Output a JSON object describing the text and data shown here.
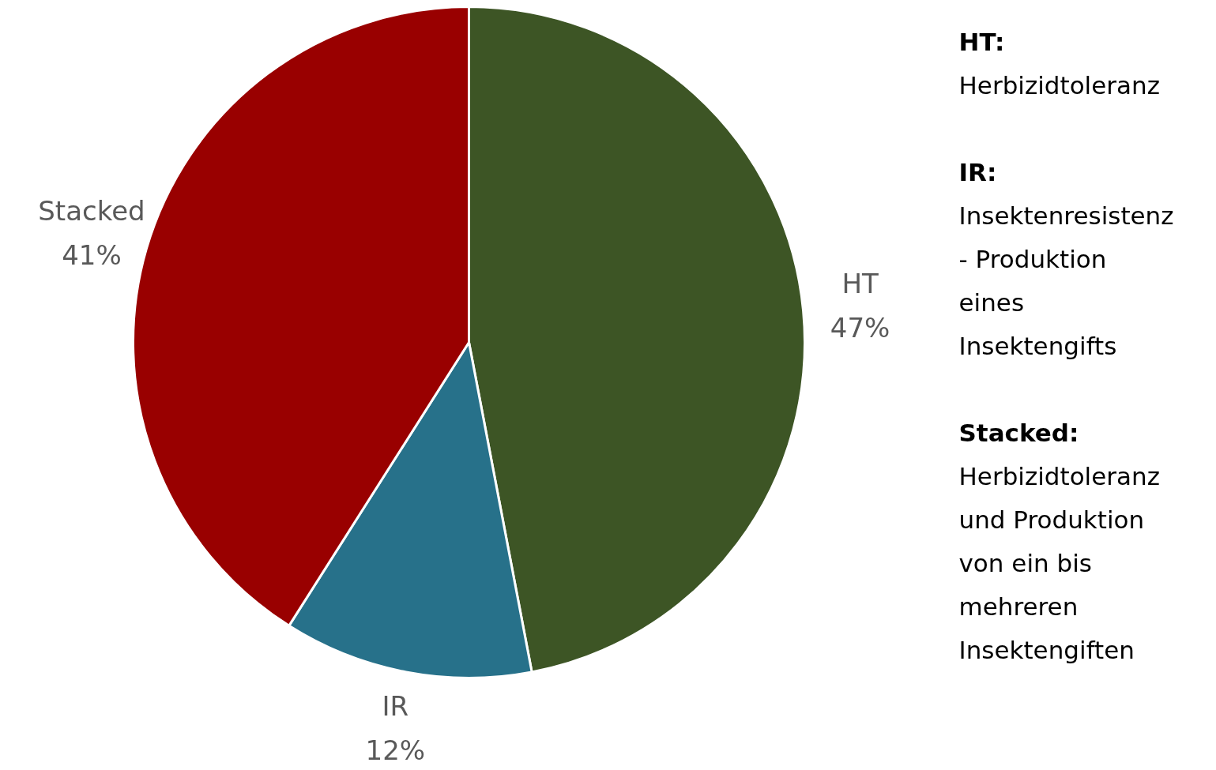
{
  "chart_data": {
    "type": "pie",
    "categories": [
      "HT",
      "IR",
      "Stacked"
    ],
    "values": [
      47,
      12,
      41
    ],
    "colors": [
      "#3d5525",
      "#27718a",
      "#990000"
    ],
    "data_labels": true,
    "value_labels": [
      "47%",
      "12%",
      "41%"
    ],
    "annotations": [
      "HT: Herbizidtoleranz",
      "IR: Insektenresistenz - Produktion eines Insektengifts",
      "Stacked: Herbizidtoleranz und Produktion von ein bis mehreren Insektengiften"
    ]
  }
}
